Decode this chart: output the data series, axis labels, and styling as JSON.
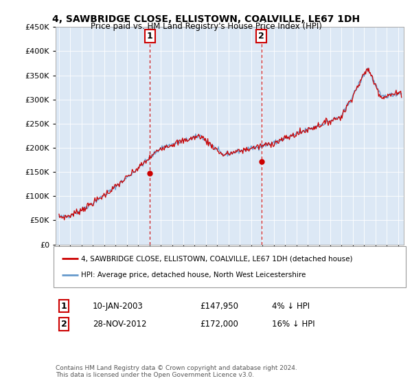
{
  "title": "4, SAWBRIDGE CLOSE, ELLISTOWN, COALVILLE, LE67 1DH",
  "subtitle": "Price paid vs. HM Land Registry's House Price Index (HPI)",
  "legend_line1": "4, SAWBRIDGE CLOSE, ELLISTOWN, COALVILLE, LE67 1DH (detached house)",
  "legend_line2": "HPI: Average price, detached house, North West Leicestershire",
  "annotation1_label": "1",
  "annotation1_date": "10-JAN-2003",
  "annotation1_price": "£147,950",
  "annotation1_hpi": "4% ↓ HPI",
  "annotation2_label": "2",
  "annotation2_date": "28-NOV-2012",
  "annotation2_price": "£172,000",
  "annotation2_hpi": "16% ↓ HPI",
  "footer": "Contains HM Land Registry data © Crown copyright and database right 2024.\nThis data is licensed under the Open Government Licence v3.0.",
  "price_color": "#cc0000",
  "hpi_color": "#6699cc",
  "vline_color": "#cc0000",
  "ylim_min": 0,
  "ylim_max": 450000,
  "yticks": [
    0,
    50000,
    100000,
    150000,
    200000,
    250000,
    300000,
    350000,
    400000,
    450000
  ],
  "sale1_year": 2003.03,
  "sale1_price": 147950,
  "sale2_year": 2012.91,
  "sale2_price": 172000,
  "background_color": "#ffffff",
  "plot_bg_color": "#dce8f5",
  "grid_color": "#ffffff"
}
